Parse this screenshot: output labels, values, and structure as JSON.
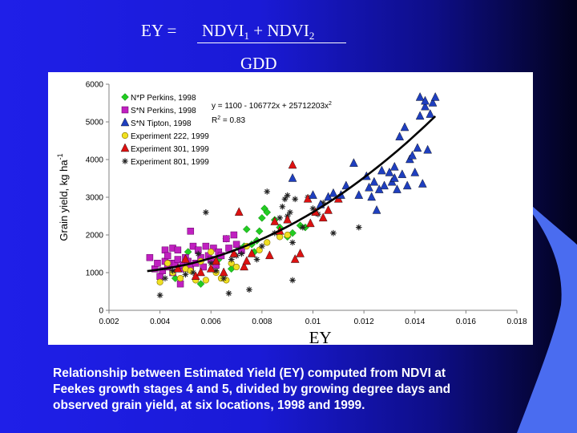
{
  "slide": {
    "formula_lhs": "EY = ",
    "formula_numerator": {
      "a": "NDVI",
      "a_sub": "1",
      "plus": " + ",
      "b": "NDVI",
      "b_sub": "2"
    },
    "formula_denominator": "GDD",
    "caption": "Relationship between Estimated Yield (EY) computed from NDVI at\nFeekes growth stages 4 and 5, divided by growing degree days and\nobserved grain yield, at six locations, 1998 and 1999."
  },
  "chart_data": {
    "type": "scatter",
    "xlabel": "EY",
    "ylabel": "Grain yield, kg ha",
    "ylabel_sup": "-1",
    "xlim": [
      0.002,
      0.018
    ],
    "ylim": [
      0,
      6000
    ],
    "xticks": [
      "0.002",
      "0.004",
      "0.006",
      "0.008",
      "0.01",
      "0.012",
      "0.014",
      "0.016",
      "0.018"
    ],
    "yticks": [
      "0",
      "1000",
      "2000",
      "3000",
      "4000",
      "5000",
      "6000"
    ],
    "equation": "y = 1100 - 106772x + 25712203x",
    "equation_sup": "2",
    "r2_label": "R",
    "r2_sup": "2",
    "r2_value": " = 0.83",
    "trend": {
      "a": 1100,
      "b": -106772,
      "c": 25712203,
      "x_range": [
        0.0035,
        0.0148
      ]
    },
    "grid": false,
    "legend_position": "top-left",
    "series": [
      {
        "name": "N*P Perkins, 1998",
        "marker": "diamond",
        "color": "#22cc22",
        "points": [
          [
            0.0046,
            850
          ],
          [
            0.0048,
            1150
          ],
          [
            0.0051,
            1550
          ],
          [
            0.0056,
            700
          ],
          [
            0.0063,
            1350
          ],
          [
            0.0066,
            1900
          ],
          [
            0.0068,
            1100
          ],
          [
            0.0071,
            1650
          ],
          [
            0.0073,
            1700
          ],
          [
            0.0074,
            2150
          ],
          [
            0.0076,
            1750
          ],
          [
            0.0077,
            1550
          ],
          [
            0.0078,
            1850
          ],
          [
            0.0079,
            2100
          ],
          [
            0.008,
            2450
          ],
          [
            0.0081,
            2700
          ],
          [
            0.0082,
            2600
          ],
          [
            0.0085,
            2400
          ],
          [
            0.0087,
            2200
          ],
          [
            0.009,
            1950
          ],
          [
            0.0092,
            2050
          ],
          [
            0.0095,
            2250
          ],
          [
            0.0097,
            2200
          ]
        ]
      },
      {
        "name": "S*N Perkins, 1998",
        "marker": "square",
        "color": "#c020c0",
        "points": [
          [
            0.0036,
            1400
          ],
          [
            0.0038,
            1100
          ],
          [
            0.0039,
            1250
          ],
          [
            0.004,
            900
          ],
          [
            0.0041,
            1050
          ],
          [
            0.0042,
            1300
          ],
          [
            0.0042,
            1600
          ],
          [
            0.0043,
            1450
          ],
          [
            0.0043,
            1150
          ],
          [
            0.0044,
            1250
          ],
          [
            0.0045,
            1000
          ],
          [
            0.0045,
            1650
          ],
          [
            0.0046,
            1250
          ],
          [
            0.0047,
            1350
          ],
          [
            0.0047,
            1600
          ],
          [
            0.0048,
            1100
          ],
          [
            0.0048,
            700
          ],
          [
            0.0049,
            1200
          ],
          [
            0.005,
            1400
          ],
          [
            0.0051,
            1300
          ],
          [
            0.0052,
            1150
          ],
          [
            0.0052,
            2100
          ],
          [
            0.0053,
            1700
          ],
          [
            0.0054,
            1250
          ],
          [
            0.0055,
            1600
          ],
          [
            0.0056,
            1400
          ],
          [
            0.0057,
            1150
          ],
          [
            0.0058,
            1700
          ],
          [
            0.0059,
            1450
          ],
          [
            0.006,
            1350
          ],
          [
            0.0061,
            1650
          ],
          [
            0.0062,
            1200
          ],
          [
            0.0063,
            1550
          ],
          [
            0.0064,
            1450
          ],
          [
            0.0066,
            1900
          ],
          [
            0.0067,
            1650
          ],
          [
            0.0069,
            2000
          ],
          [
            0.007,
            1750
          ],
          [
            0.0072,
            1600
          ]
        ]
      },
      {
        "name": "S*N Tipton, 1998",
        "marker": "triangle",
        "color": "#1f3fbf",
        "points": [
          [
            0.0092,
            3500
          ],
          [
            0.01,
            3050
          ],
          [
            0.0103,
            2800
          ],
          [
            0.0106,
            3000
          ],
          [
            0.0108,
            3100
          ],
          [
            0.0111,
            3050
          ],
          [
            0.0113,
            3300
          ],
          [
            0.0116,
            3900
          ],
          [
            0.0118,
            3050
          ],
          [
            0.0121,
            3550
          ],
          [
            0.0122,
            3250
          ],
          [
            0.0123,
            3000
          ],
          [
            0.0124,
            3400
          ],
          [
            0.0125,
            2650
          ],
          [
            0.0127,
            3700
          ],
          [
            0.0128,
            3300
          ],
          [
            0.013,
            3650
          ],
          [
            0.0131,
            3400
          ],
          [
            0.0132,
            3800
          ],
          [
            0.0133,
            3200
          ],
          [
            0.0134,
            4600
          ],
          [
            0.0135,
            3600
          ],
          [
            0.0136,
            4850
          ],
          [
            0.0137,
            3300
          ],
          [
            0.0138,
            4000
          ],
          [
            0.0139,
            4100
          ],
          [
            0.014,
            3650
          ],
          [
            0.0141,
            4300
          ],
          [
            0.0142,
            5150
          ],
          [
            0.0143,
            3350
          ],
          [
            0.0144,
            5400
          ],
          [
            0.0145,
            4250
          ],
          [
            0.0146,
            5200
          ],
          [
            0.0147,
            5500
          ],
          [
            0.0148,
            5650
          ],
          [
            0.0142,
            5650
          ],
          [
            0.0144,
            5550
          ],
          [
            0.0132,
            3500
          ],
          [
            0.0126,
            3200
          ]
        ]
      },
      {
        "name": "Experiment 222, 1999",
        "marker": "circle",
        "color": "#f0e020",
        "points": [
          [
            0.004,
            750
          ],
          [
            0.0043,
            1250
          ],
          [
            0.0045,
            1000
          ],
          [
            0.0048,
            850
          ],
          [
            0.005,
            1100
          ],
          [
            0.0052,
            1050
          ],
          [
            0.0054,
            800
          ],
          [
            0.0056,
            1300
          ],
          [
            0.0058,
            800
          ],
          [
            0.006,
            1550
          ],
          [
            0.0062,
            1000
          ],
          [
            0.0064,
            850
          ],
          [
            0.0066,
            800
          ],
          [
            0.0068,
            1250
          ],
          [
            0.007,
            1150
          ],
          [
            0.0074,
            1700
          ],
          [
            0.0079,
            1600
          ],
          [
            0.0082,
            1800
          ],
          [
            0.0087,
            1950
          ],
          [
            0.009,
            2000
          ]
        ]
      },
      {
        "name": "Experiment 301, 1999",
        "marker": "triangle",
        "color": "#dd1111",
        "points": [
          [
            0.0047,
            1100
          ],
          [
            0.005,
            1350
          ],
          [
            0.0054,
            900
          ],
          [
            0.0056,
            1000
          ],
          [
            0.006,
            1100
          ],
          [
            0.0062,
            1300
          ],
          [
            0.0065,
            1000
          ],
          [
            0.0069,
            1500
          ],
          [
            0.0071,
            2600
          ],
          [
            0.0073,
            1150
          ],
          [
            0.0074,
            1300
          ],
          [
            0.0076,
            1500
          ],
          [
            0.0083,
            1450
          ],
          [
            0.0085,
            2350
          ],
          [
            0.0087,
            2100
          ],
          [
            0.009,
            2400
          ],
          [
            0.0093,
            1350
          ],
          [
            0.0095,
            1500
          ],
          [
            0.0092,
            3850
          ],
          [
            0.0098,
            2950
          ],
          [
            0.0099,
            2300
          ],
          [
            0.0101,
            2600
          ],
          [
            0.0104,
            2450
          ],
          [
            0.0106,
            2650
          ],
          [
            0.011,
            2950
          ]
        ]
      },
      {
        "name": "Experiment 801, 1999",
        "marker": "star",
        "color": "#222222",
        "points": [
          [
            0.004,
            400
          ],
          [
            0.0042,
            850
          ],
          [
            0.0045,
            1050
          ],
          [
            0.005,
            950
          ],
          [
            0.0053,
            1000
          ],
          [
            0.0055,
            1500
          ],
          [
            0.0058,
            2600
          ],
          [
            0.006,
            1250
          ],
          [
            0.0062,
            1050
          ],
          [
            0.0065,
            850
          ],
          [
            0.0067,
            450
          ],
          [
            0.0068,
            1350
          ],
          [
            0.007,
            1450
          ],
          [
            0.0072,
            1500
          ],
          [
            0.0075,
            550
          ],
          [
            0.0078,
            1350
          ],
          [
            0.008,
            1700
          ],
          [
            0.0082,
            3150
          ],
          [
            0.0085,
            2050
          ],
          [
            0.0087,
            2450
          ],
          [
            0.0088,
            2750
          ],
          [
            0.0089,
            2950
          ],
          [
            0.009,
            2500
          ],
          [
            0.0091,
            2600
          ],
          [
            0.0092,
            1800
          ],
          [
            0.0093,
            2950
          ],
          [
            0.0096,
            2200
          ],
          [
            0.0098,
            3000
          ],
          [
            0.01,
            2700
          ],
          [
            0.0102,
            2550
          ],
          [
            0.0104,
            2850
          ],
          [
            0.0108,
            2050
          ],
          [
            0.011,
            3000
          ],
          [
            0.0118,
            2200
          ],
          [
            0.0092,
            800
          ],
          [
            0.009,
            3050
          ]
        ]
      }
    ]
  }
}
